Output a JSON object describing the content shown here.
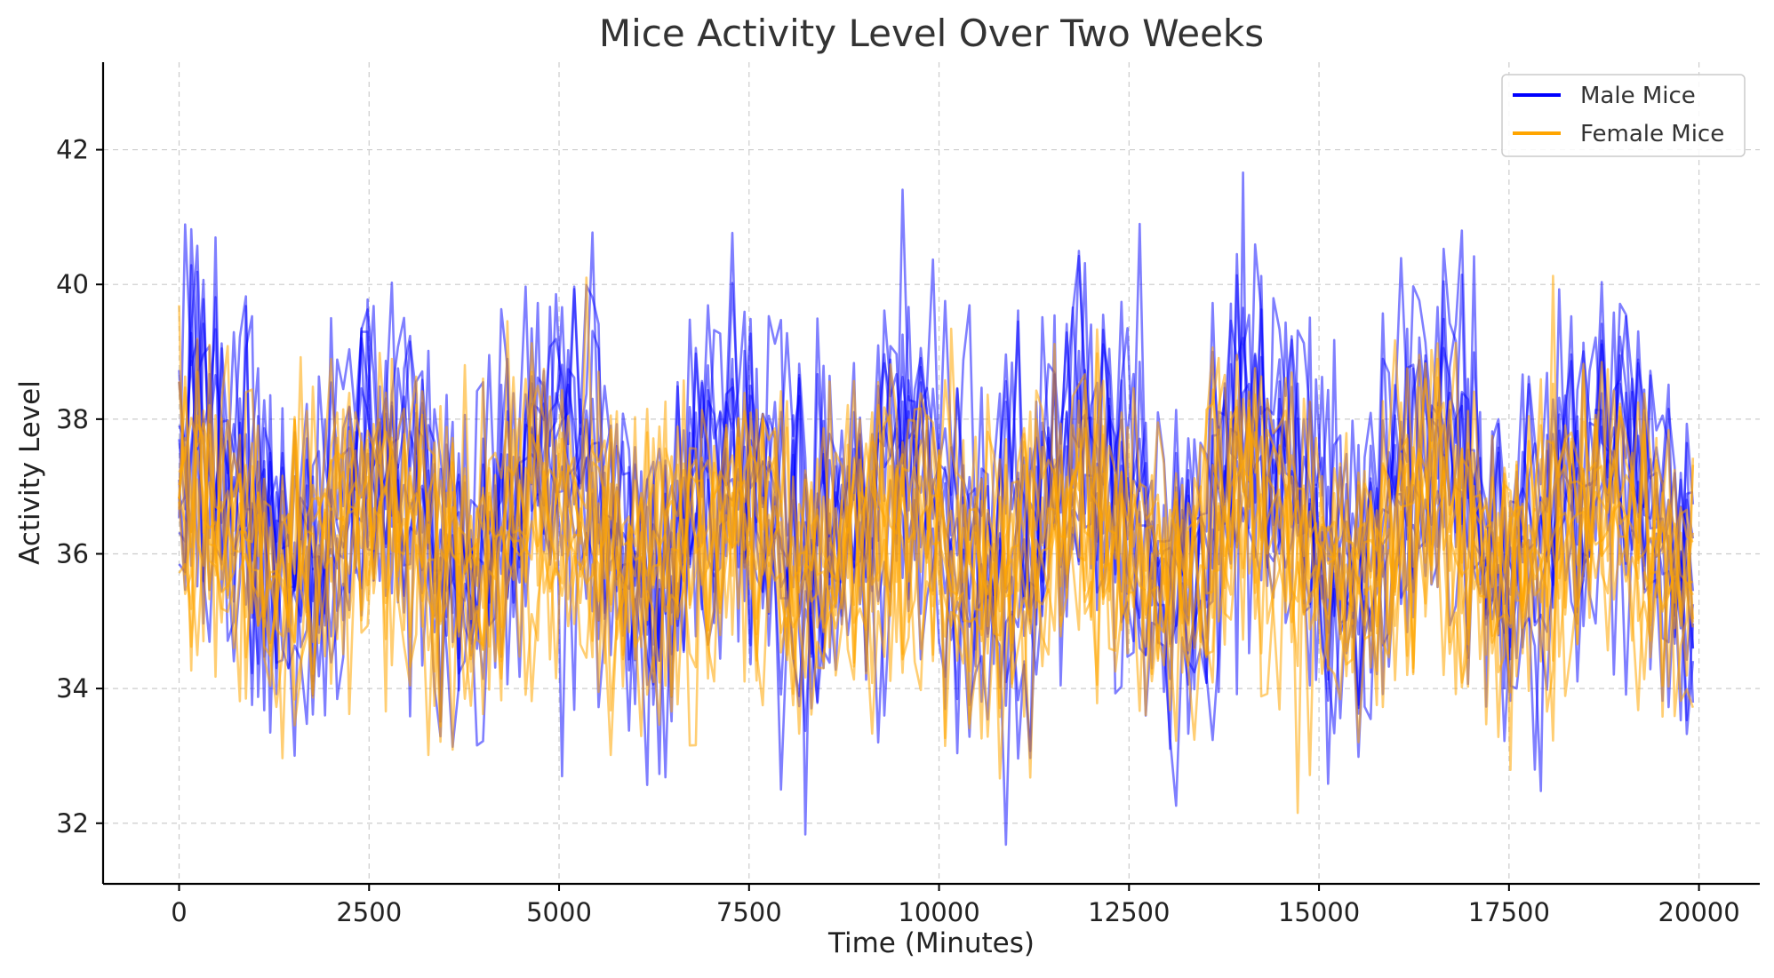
{
  "chart_data": {
    "type": "line",
    "title": "Mice Activity Level Over Two Weeks",
    "xlabel": "Time (Minutes)",
    "ylabel": "Activity Level",
    "xlim": [
      -1000,
      20800
    ],
    "ylim": [
      31.1,
      43.3
    ],
    "xticks": [
      0,
      2500,
      5000,
      7500,
      10000,
      12500,
      15000,
      17500,
      20000
    ],
    "yticks": [
      32,
      34,
      36,
      38,
      40,
      42
    ],
    "grid": true,
    "legend_position": "top-right",
    "sampling": {
      "x_start": 0,
      "x_step": 80,
      "x_end": 19920
    },
    "series": [
      {
        "name": "Male Mice",
        "color": "#0000ff",
        "lines": 10,
        "legend_alpha": 1.0,
        "line_alpha": 0.5,
        "center": 36.7,
        "amplitude": 1.0,
        "noise": 1.7,
        "period_minutes": 2300
      },
      {
        "name": "Female Mice",
        "color": "#ffa500",
        "lines": 10,
        "legend_alpha": 1.0,
        "line_alpha": 0.55,
        "center": 36.2,
        "amplitude": 0.6,
        "noise": 1.5,
        "period_minutes": 2300
      }
    ]
  }
}
